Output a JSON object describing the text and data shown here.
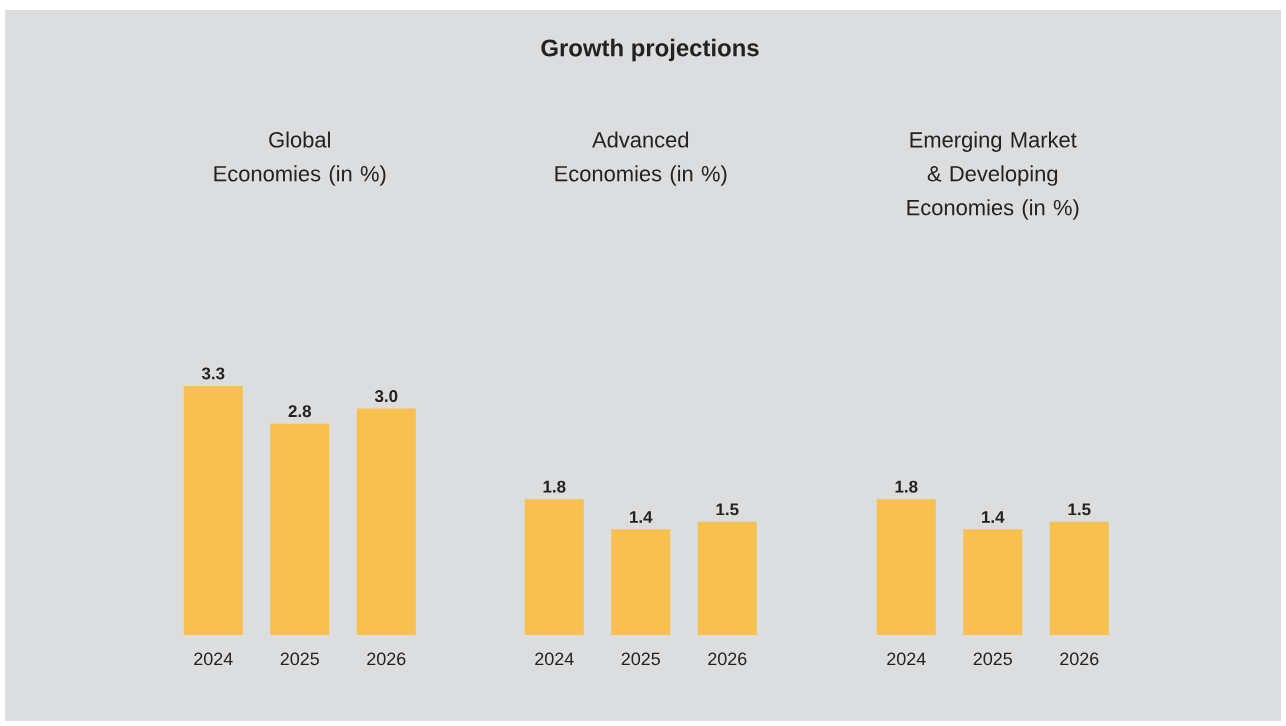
{
  "chart_data": [
    {
      "type": "other",
      "title": "Growth projections"
    },
    {
      "type": "bar",
      "title": "Global Economies (in %)",
      "categories": [
        "2024",
        "2025",
        "2026"
      ],
      "values": [
        3.3,
        2.8,
        3.0
      ],
      "value_labels": [
        "3.3",
        "2.8",
        "3.0"
      ],
      "color": "#f7c04f"
    },
    {
      "type": "bar",
      "title": "Advanced Economies (in %)",
      "categories": [
        "2024",
        "2025",
        "2026"
      ],
      "values": [
        1.8,
        1.4,
        1.5
      ],
      "value_labels": [
        "1.8",
        "1.4",
        "1.5"
      ],
      "color": "#f7c04f"
    },
    {
      "type": "bar",
      "title": "Emerging Market & Developing Economies (in %)",
      "categories": [
        "2024",
        "2025",
        "2026"
      ],
      "values": [
        1.8,
        1.4,
        1.5
      ],
      "value_labels": [
        "1.8",
        "1.4",
        "1.5"
      ],
      "color": "#f7c04f"
    }
  ]
}
